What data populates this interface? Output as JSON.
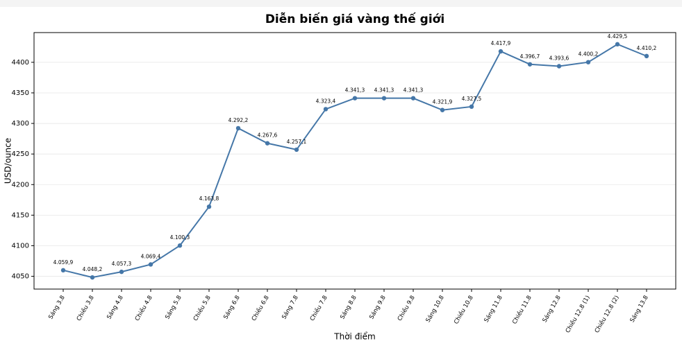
{
  "chart_data": {
    "type": "line",
    "title": "Diễn biến giá vàng thế giới",
    "x_label": "Thời điểm",
    "y_label": "USD/ounce",
    "categories": [
      "Sáng 3.8",
      "Chiều 3.8",
      "Sáng 4.8",
      "Chiều 4.8",
      "Sáng 5.8",
      "Chiều 5.8",
      "Sáng 6.8",
      "Chiều 6.8",
      "Sáng 7.8",
      "Chiều 7.8",
      "Sáng 8.8",
      "Sáng 9.8",
      "Chiều 9.8",
      "Sáng 10.8",
      "Chiều 10.8",
      "Sáng 11.8",
      "Chiều 11.8",
      "Sáng 12.8",
      "Chiều 12.8 (1)",
      "Chiều 12.8 (2)",
      "Sáng 13.8"
    ],
    "values": [
      4059.9,
      4048.2,
      4057.3,
      4069.4,
      4100.3,
      4163.8,
      4292.2,
      4267.6,
      4257.1,
      4323.4,
      4341.3,
      4341.3,
      4341.3,
      4321.9,
      4327.5,
      4417.9,
      4396.7,
      4393.6,
      4400.2,
      4429.5,
      4410.2
    ],
    "value_labels": [
      "4.059,9",
      "4.048,2",
      "4.057,3",
      "4.069,4",
      "4.100,3",
      "4.163,8",
      "4.292,2",
      "4.267,6",
      "4.257,1",
      "4.323,4",
      "4.341,3",
      "4.341,3",
      "4.341,3",
      "4.321,9",
      "4.327,5",
      "4.417,9",
      "4.396,7",
      "4.393,6",
      "4.400,2",
      "4.429,5",
      "4.410,2"
    ],
    "color": "#4577a8",
    "ylim": [
      4029.1,
      4448.6
    ],
    "yticks": [
      4050,
      4100,
      4150,
      4200,
      4250,
      4300,
      4350,
      4400
    ],
    "grid": true
  }
}
